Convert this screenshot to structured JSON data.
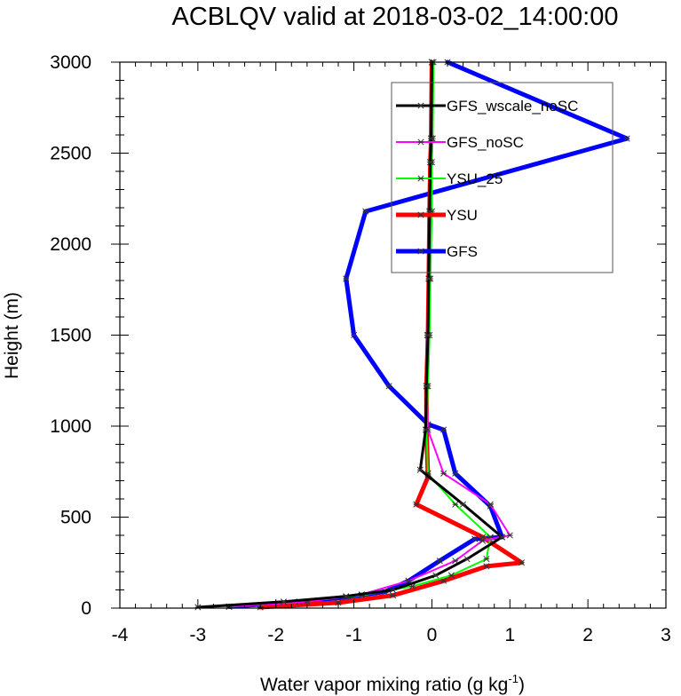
{
  "chart_data": {
    "type": "line",
    "title": "ACBLQV valid at 2018-03-02_14:00:00",
    "xlabel": "Water vapor mixing ratio (g kg",
    "xlabel_superscript": "-1",
    "xlabel_suffix": ")",
    "ylabel": "Height (m)",
    "xlim": [
      -4,
      3
    ],
    "ylim": [
      0,
      3000
    ],
    "xticks": [
      -4,
      -3,
      -2,
      -1,
      0,
      1,
      2,
      3
    ],
    "yticks": [
      0,
      500,
      1000,
      1500,
      2000,
      2500,
      3000
    ],
    "xtick_labels": [
      "-4",
      "-3",
      "-2",
      "-1",
      "0",
      "1",
      "2",
      "3"
    ],
    "ytick_labels": [
      "0",
      "500",
      "1000",
      "1500",
      "2000",
      "2500",
      "3000"
    ],
    "grid": false,
    "legend_position": "top-right",
    "series": [
      {
        "name": "GFS",
        "color": "#0000ff",
        "width": 5,
        "x": [
          -2.6,
          -1.7,
          -1.1,
          -0.6,
          -0.3,
          0.1,
          0.55,
          0.9,
          0.75,
          0.3,
          0.15,
          -0.05,
          -0.55,
          -1.0,
          -1.1,
          -0.85,
          2.5,
          0.2
        ],
        "y": [
          8,
          35,
          60,
          90,
          150,
          260,
          380,
          390,
          560,
          740,
          980,
          1010,
          1220,
          1500,
          1810,
          2180,
          2580,
          3000
        ]
      },
      {
        "name": "YSU",
        "color": "#ff0000",
        "width": 5,
        "x": [
          -2.2,
          -1.2,
          -0.5,
          0.15,
          0.7,
          1.15,
          0.65,
          -0.2,
          -0.05,
          -0.07,
          -0.07,
          -0.05,
          -0.04,
          -0.03,
          -0.02,
          -0.01,
          0.0
        ],
        "y": [
          5,
          30,
          70,
          150,
          230,
          250,
          390,
          570,
          720,
          980,
          1220,
          1500,
          1810,
          2180,
          2450,
          2580,
          3000
        ]
      },
      {
        "name": "YSU_25",
        "color": "#00ff00",
        "width": 2,
        "x": [
          -2.6,
          -1.7,
          -0.9,
          -0.25,
          0.25,
          0.7,
          0.75,
          0.3,
          -0.05,
          -0.07,
          -0.05,
          -0.03,
          -0.02,
          0.0,
          0.0,
          0.01,
          0.02
        ],
        "y": [
          8,
          35,
          70,
          120,
          180,
          270,
          390,
          570,
          740,
          980,
          1220,
          1500,
          1810,
          2180,
          2450,
          2580,
          3000
        ]
      },
      {
        "name": "GFS_noSC",
        "color": "#ff00ff",
        "width": 2,
        "x": [
          -2.6,
          -1.6,
          -0.9,
          -0.3,
          0.3,
          0.65,
          1.0,
          0.75,
          0.15,
          -0.05,
          -0.07,
          -0.06,
          -0.04,
          -0.03,
          -0.02,
          -0.01,
          0.0
        ],
        "y": [
          8,
          35,
          75,
          150,
          260,
          370,
          400,
          570,
          740,
          980,
          1220,
          1500,
          1810,
          2180,
          2450,
          2580,
          3000
        ]
      },
      {
        "name": "GFS_wscale_noSC",
        "color": "#000000",
        "width": 3,
        "x": [
          -3.0,
          -1.9,
          -1.1,
          -0.5,
          0.05,
          0.45,
          0.9,
          0.4,
          -0.15,
          -0.08,
          -0.07,
          -0.05,
          -0.04,
          -0.03,
          -0.02,
          -0.01,
          0.0
        ],
        "y": [
          5,
          35,
          65,
          100,
          180,
          270,
          390,
          570,
          760,
          980,
          1220,
          1500,
          1810,
          2180,
          2450,
          2580,
          3000
        ]
      }
    ],
    "legend_order": [
      "GFS_wscale_noSC",
      "GFS_noSC",
      "YSU_25",
      "YSU",
      "GFS"
    ]
  }
}
